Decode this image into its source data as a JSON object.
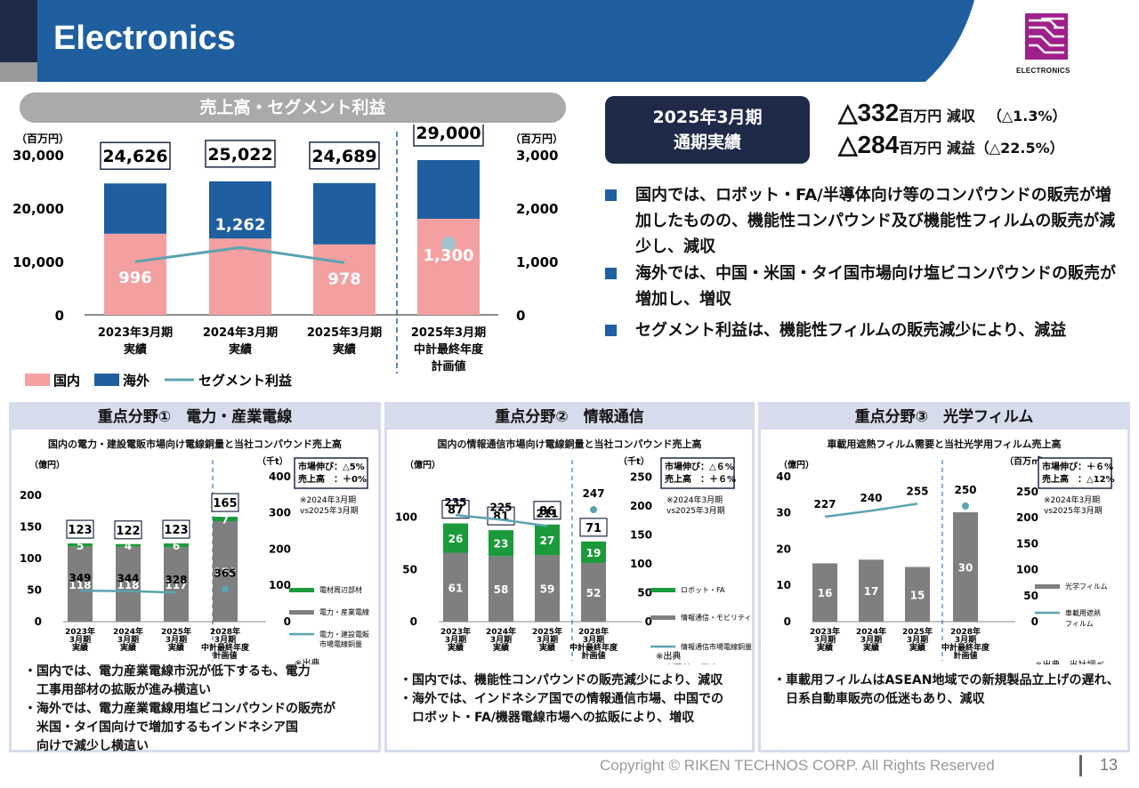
{
  "header": {
    "title": "Electronics",
    "logo_text": "ELECTRONICS"
  },
  "main_chart": {
    "pill": "売上高・セグメント利益",
    "unit_left": "（百万円）",
    "unit_right": "（百万円）",
    "chart_data": {
      "type": "bar",
      "categories": [
        "2023年3月期\n実績",
        "2024年3月期\n実績",
        "2025年3月期\n実績",
        "2025年3月期\n中計最終年度\n計画値"
      ],
      "series": [
        {
          "name": "国内",
          "values": [
            15200,
            14300,
            13200,
            18000
          ]
        },
        {
          "name": "海外",
          "values": [
            9426,
            10722,
            11489,
            11000
          ]
        },
        {
          "name": "セグメント利益",
          "values": [
            996,
            1262,
            978,
            1300
          ]
        }
      ],
      "totals": [
        "24,626",
        "25,022",
        "24,689",
        "29,000"
      ],
      "profit_labels": [
        "996",
        "1,262",
        "978",
        "1,300"
      ],
      "y_ticks": [
        "30,000",
        "20,000",
        "10,000",
        "0"
      ],
      "y2_ticks": [
        "3,000",
        "2,000",
        "1,000",
        "0"
      ],
      "ylim": [
        0,
        30000
      ],
      "y2lim": [
        0,
        3000
      ],
      "legend": [
        "国内",
        "海外",
        "セグメント利益"
      ],
      "colors": {
        "domestic": "#f4a0a0",
        "overseas": "#1f5fa0",
        "profit": "#5aa3b0"
      }
    }
  },
  "results": {
    "label": "2025年3月期\n通期実績",
    "lines": [
      {
        "value": "△332",
        "unit": "百万円 減収",
        "pct": "（△1.3%）"
      },
      {
        "value": "△284",
        "unit": "百万円 減益",
        "pct": "（△22.5%）"
      }
    ],
    "bullets": [
      "国内では、ロボット・FA/半導体向け等のコンパウンドの販売が増加したものの、機能性コンパウンド及び機能性フィルムの販売が減少し、減収",
      "海外では、中国・米国・タイ国市場向け塩ビコンパウンドの販売が増加し、増収",
      "セグメント利益は、機能性フィルムの販売減少により、減益"
    ]
  },
  "panels": [
    {
      "title": "重点分野①　電力・産業電線",
      "subtitle": "国内の電力・建設電販市場向け電線銅量と当社コンパウンド売上高",
      "unit_l": "（億円）",
      "unit_r": "（千t）",
      "market": "市場伸び：△5%\n売上高　：＋0%",
      "note": "※2024年3月期\nvs2025年3月期",
      "legend": [
        "電材周辺部材",
        "電力・産業電線",
        "電力・建設電販\n市場電線銅量"
      ],
      "source": "※出典\n日本電線工業会",
      "y_ticks": [
        "200",
        "150",
        "100",
        "50",
        "0"
      ],
      "y2_ticks": [
        "400",
        "300",
        "200",
        "100",
        "0"
      ],
      "chart_data": {
        "categories": [
          "2023年\n3月期\n実績",
          "2024年\n3月期\n実績",
          "2025年\n3月期\n実績",
          "2028年\n3月期\n中計最終年度\n計画値"
        ],
        "bottom": [
          118,
          118,
          117,
          158
        ],
        "top": [
          5,
          4,
          6,
          7
        ],
        "totals": [
          "123",
          "122",
          "123",
          "165"
        ],
        "line": [
          349,
          344,
          328,
          365
        ]
      },
      "notes": [
        "・国内では、電力産業電線市況が低下するも、電力\n　工事用部材の拡販が進み横這い",
        "・海外では、電力産業電線用塩ビコンパウンドの販売が\n　米国・タイ国向けで増加するもインドネシア国\n　向けで減少し横這い"
      ]
    },
    {
      "title": "重点分野②　情報通信",
      "subtitle": "国内の情報通信市場向け電線銅量と当社コンパウンド売上高",
      "unit_l": "（億円）",
      "unit_r": "（千t）",
      "market": "市場伸び：△６%\n売上高　：＋６%",
      "note": "※2024年3月期\nvs2025年3月期",
      "legend": [
        "ロボット・FA",
        "情報通信・モビリティ",
        "情報通信市場電線銅量"
      ],
      "source": "※出典\n日本電線工業会\n通信、電気機械、自動車\n総計",
      "y_ticks": [
        "100",
        "50",
        "0"
      ],
      "y2_ticks": [
        "250",
        "200",
        "150",
        "100",
        "50",
        "0"
      ],
      "chart_data": {
        "categories": [
          "2023年\n3月期\n実績",
          "2024年\n3月期\n実績",
          "2025年\n3月期\n実績",
          "2028年\n3月期\n中計最終年度\n計画値"
        ],
        "bottom": [
          61,
          58,
          59,
          52
        ],
        "top": [
          26,
          23,
          27,
          19
        ],
        "totals": [
          "87",
          "81",
          "86",
          "71"
        ],
        "line": [
          235,
          225,
          211,
          247
        ]
      },
      "notes": [
        "・国内では、機能性コンパウンドの販売減少により、減収",
        "・海外では、インドネシア国での情報通信市場、中国での\n　ロボット・FA/機器電線市場への拡販により、増収"
      ]
    },
    {
      "title": "重点分野③　光学フィルム",
      "subtitle": "車載用遮熱フィルム需要と当社光学用フィルム売上高",
      "unit_l": "（億円）",
      "unit_r": "（百万㎡）",
      "market": "市場伸び：＋６%\n売上高　：△12%",
      "note": "※2024年3月期\nvs2025年3月期",
      "legend": [
        "光学フィルム",
        "車載用遮熱\nフィルム"
      ],
      "source": "※出典　当社調べ",
      "y_ticks": [
        "40",
        "30",
        "20",
        "10",
        "0"
      ],
      "y2_ticks": [
        "250",
        "200",
        "150",
        "100",
        "50",
        "0"
      ],
      "chart_data": {
        "categories": [
          "2023年\n3月期\n実績",
          "2024年\n3月期\n実績",
          "2025年\n3月期\n実績",
          "2028年\n3月期\n中計最終年度\n計画値"
        ],
        "bottom": [
          16,
          17,
          15,
          30
        ],
        "line": [
          227,
          240,
          255,
          250
        ]
      },
      "notes": [
        "・車載用フィルムはASEAN地域での新規製品立上げの遅れ、\n　日系自動車販売の低迷もあり、減収"
      ]
    }
  ],
  "footer": {
    "copyright": "Copyright © RIKEN TECHNOS CORP. All Rights Reserved",
    "page": "13"
  }
}
